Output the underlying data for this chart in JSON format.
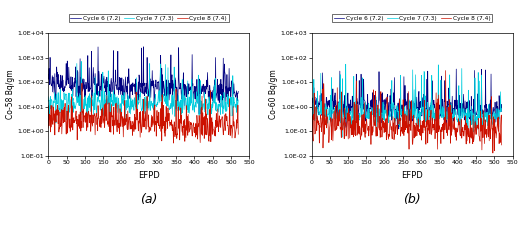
{
  "title_a": "(a)",
  "title_b": "(b)",
  "xlabel": "EFPD",
  "ylabel_a": "Co-58 Bq/gm",
  "ylabel_b": "Co-60 Bq/gm",
  "xlim": [
    0,
    550
  ],
  "xticks": [
    0,
    50,
    100,
    150,
    200,
    250,
    300,
    350,
    400,
    450,
    500,
    550
  ],
  "ylim_a": [
    0.1,
    10000.0
  ],
  "ylim_b": [
    0.01,
    1000.0
  ],
  "yticks_a": [
    0.1,
    1.0,
    10.0,
    100.0,
    1000.0,
    10000.0
  ],
  "yticks_b": [
    0.01,
    0.1,
    1.0,
    10.0,
    100.0,
    1000.0
  ],
  "ytick_labels_a": [
    "1.0E-01",
    "1.0E+00",
    "1.0E+01",
    "1.0E+02",
    "1.0E+03",
    "1.0E+04"
  ],
  "ytick_labels_b": [
    "1.0E-02",
    "1.0E-01",
    "1.0E+00",
    "1.0E+01",
    "1.0E+02",
    "1.0E+03"
  ],
  "legend_labels": [
    "Cycle 6 (7.2)",
    "Cycle 7 (7.3)",
    "Cycle 8 (7.4)"
  ],
  "colors": [
    "#000080",
    "#00CCDD",
    "#CC1100"
  ],
  "n_points": 520,
  "figsize": [
    5.24,
    2.27
  ],
  "dpi": 100
}
